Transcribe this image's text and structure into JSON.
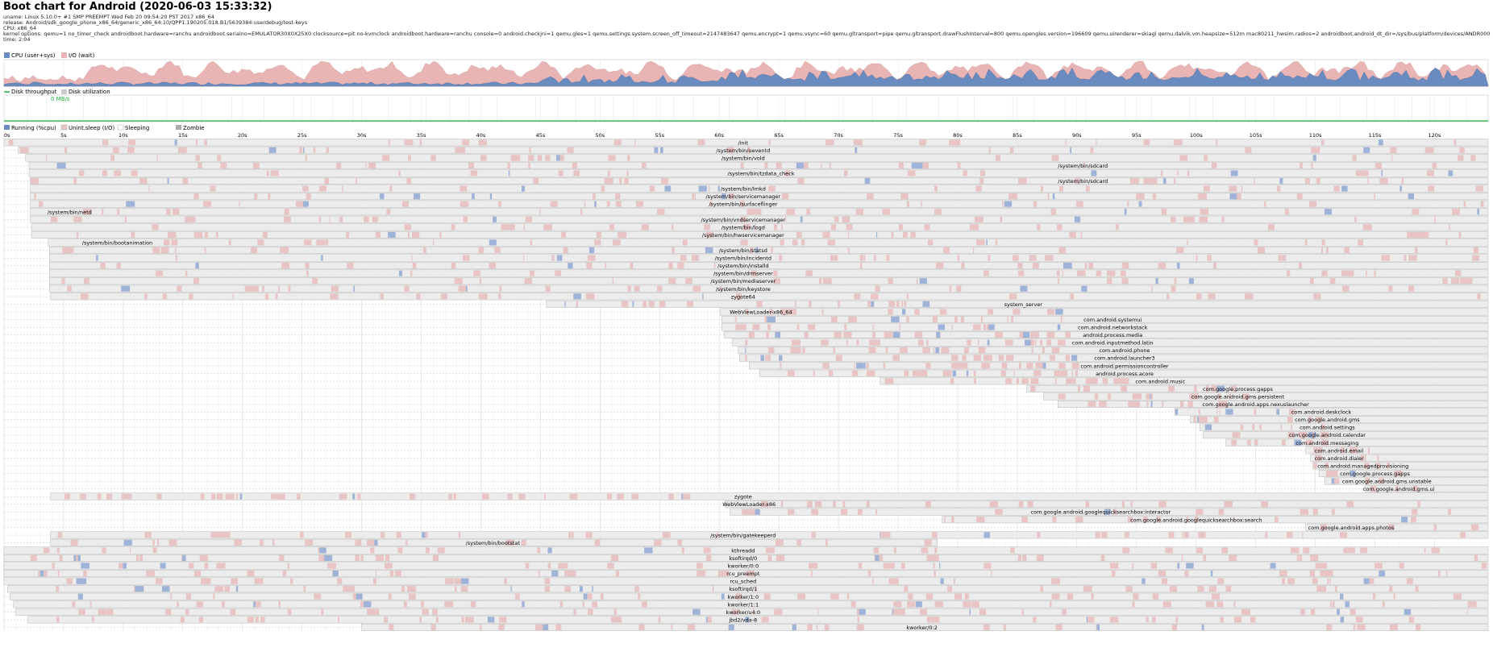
{
  "header": {
    "title": "Boot chart for Android (2020-06-03 15:33:32)",
    "uname": "uname: Linux 5.10.0+ #1 SMP PREEMPT Wed Feb 20 09:54:20 PST 2017 x86_64",
    "release": "release: Android/sdk_google_phone_x86_64/generic_x86_64:10/QPP1.190205.018.B1/5639384:userdebug/test-keys",
    "cpu": "CPU: x86_64",
    "kernel": "kernel options: qemu=1 no_timer_check androidboot.hardware=ranchu androidboot.serialno=EMULATOR30X0X25X0 clocksource=pit no-kvmclock androidboot.hardware=ranchu console=0 android.checkjni=1 qemu.gles=1 qemu.settings.system.screen_off_timeout=2147483647 qemu.encrypt=1 qemu.vsync=60 qemu.gltransport=pipe qemu.gltransport.drawFlushInterval=800 qemu.opengles.version=196609 qemu.uirenderer=skiagl qemu.dalvik.vm.heapsize=512m mac80211_hwsim.radios=2 androidboot.android_dt_dir=/sys/bus/platform/devices/ANDR0001:00/properties/android/ loop.max_part=",
    "time": "time: 2:04"
  },
  "cpu_legend": {
    "user": "CPU (user+sys)",
    "io": "I/O (wait)"
  },
  "disk_legend": {
    "throughput": "Disk throughput",
    "util": "Disk utilization",
    "max": "0 MB/s"
  },
  "proc_legend": {
    "running": "Running (%cpu)",
    "unint": "Unint.sleep (I/O)",
    "sleeping": "Sleeping",
    "zombie": "Zombie"
  },
  "colors": {
    "cpu": "#6a8bbf",
    "io": "#e8b4b4",
    "disk": "#1fb43f",
    "proc_bg": "#ececec",
    "proc_border": "#999999",
    "io_mark": "#e8c4c4",
    "run_mark": "#9fb3d8"
  },
  "axis": {
    "ticks": [
      "0s",
      "5s",
      "10s",
      "15s",
      "20s",
      "25s",
      "30s",
      "35s",
      "40s",
      "45s",
      "50s",
      "55s",
      "60s",
      "65s",
      "70s",
      "75s",
      "80s",
      "85s",
      "90s",
      "95s",
      "100s",
      "105s",
      "110s",
      "115s",
      "120s"
    ],
    "max_seconds": 124.5
  },
  "processes": [
    {
      "name": "/init",
      "start": 0,
      "end": 124.5,
      "label_at": 62
    },
    {
      "name": "/system/bin/ueventd",
      "start": 1.2,
      "end": 124.5,
      "label_at": 62
    },
    {
      "name": "/system/bin/vold",
      "start": 1.8,
      "end": 124.5,
      "label_at": 62
    },
    {
      "name": "/system/bin/sdcard",
      "start": 2.1,
      "end": 124.5,
      "label_at": 90.5
    },
    {
      "name": "/system/bin/tzdata_check",
      "start": 2.1,
      "end": 124.5,
      "label_at": 63.5
    },
    {
      "name": "/system/bin/sdcard",
      "start": 2.2,
      "end": 124.5,
      "label_at": 90.5
    },
    {
      "name": "/system/bin/lmkd",
      "start": 2.2,
      "end": 124.5,
      "label_at": 62
    },
    {
      "name": "/system/bin/servicemanager",
      "start": 2.2,
      "end": 124.5,
      "label_at": 62
    },
    {
      "name": "/system/bin/surfaceflinger",
      "start": 2.2,
      "end": 124.5,
      "label_at": 62
    },
    {
      "name": "/system/bin/netd",
      "start": 2.2,
      "end": 124.5,
      "label_at": 5.5
    },
    {
      "name": "/system/bin/vndservicemanager",
      "start": 2.2,
      "end": 124.5,
      "label_at": 62
    },
    {
      "name": "/system/bin/logd",
      "start": 2.3,
      "end": 124.5,
      "label_at": 62
    },
    {
      "name": "/system/bin/hwservicemanager",
      "start": 2.3,
      "end": 124.5,
      "label_at": 62
    },
    {
      "name": "/system/bin/bootanimation",
      "start": 3.7,
      "end": 124.5,
      "label_at": 9.5
    },
    {
      "name": "/system/bin/statsd",
      "start": 3.8,
      "end": 124.5,
      "label_at": 62
    },
    {
      "name": "/system/bin/incidentd",
      "start": 3.8,
      "end": 124.5,
      "label_at": 62
    },
    {
      "name": "/system/bin/installd",
      "start": 3.8,
      "end": 124.5,
      "label_at": 62
    },
    {
      "name": "/system/bin/drmserver",
      "start": 3.8,
      "end": 124.5,
      "label_at": 62
    },
    {
      "name": "/system/bin/mediaserver",
      "start": 3.8,
      "end": 124.5,
      "label_at": 62
    },
    {
      "name": "/system/bin/keystore",
      "start": 3.8,
      "end": 124.5,
      "label_at": 62
    },
    {
      "name": "zygote64",
      "start": 3.9,
      "end": 124.5,
      "label_at": 62
    },
    {
      "name": "system_server",
      "start": 45.5,
      "end": 124.5,
      "label_at": 85.5
    },
    {
      "name": "WebViewLoader-x86_64",
      "start": 60.1,
      "end": 124.5,
      "label_at": 63.5
    },
    {
      "name": "com.android.systemui",
      "start": 60.2,
      "end": 124.5,
      "label_at": 93
    },
    {
      "name": "com.android.networkstack",
      "start": 60.2,
      "end": 124.5,
      "label_at": 93
    },
    {
      "name": "android.process.media",
      "start": 60.4,
      "end": 124.5,
      "label_at": 93
    },
    {
      "name": "com.android.inputmethod.latin",
      "start": 61.1,
      "end": 124.5,
      "label_at": 93
    },
    {
      "name": "com.android.phone",
      "start": 61.6,
      "end": 124.5,
      "label_at": 94
    },
    {
      "name": "com.android.launcher3",
      "start": 61.7,
      "end": 124.5,
      "label_at": 94
    },
    {
      "name": "com.android.permissioncontroller",
      "start": 62.5,
      "end": 124.5,
      "label_at": 94
    },
    {
      "name": "android.process.acore",
      "start": 63.4,
      "end": 124.5,
      "label_at": 94
    },
    {
      "name": "com.android.music",
      "start": 73.5,
      "end": 124.5,
      "label_at": 97
    },
    {
      "name": "com.google.process.gapps",
      "start": 85.8,
      "end": 124.5,
      "label_at": 103.5
    },
    {
      "name": "com.google.android.gms.persistent",
      "start": 87.2,
      "end": 124.5,
      "label_at": 103.5
    },
    {
      "name": "com.google.android.apps.nexuslauncher",
      "start": 88.4,
      "end": 124.5,
      "label_at": 105
    },
    {
      "name": "com.android.deskclock",
      "start": 98.2,
      "end": 124.5,
      "label_at": 110.5
    },
    {
      "name": "com.google.android.gms",
      "start": 99.5,
      "end": 124.5,
      "label_at": 111
    },
    {
      "name": "com.android.settings",
      "start": 100.3,
      "end": 124.5,
      "label_at": 111
    },
    {
      "name": "com.google.android.calendar",
      "start": 100.6,
      "end": 124.5,
      "label_at": 111
    },
    {
      "name": "com.android.messaging",
      "start": 102.5,
      "end": 124.5,
      "label_at": 111
    },
    {
      "name": "com.android.email",
      "start": 109.2,
      "end": 124.5,
      "label_at": 112
    },
    {
      "name": "com.android.dialer",
      "start": 109.6,
      "end": 124.5,
      "label_at": 112
    },
    {
      "name": "com.android.managedprovisioning",
      "start": 109.8,
      "end": 124.5,
      "label_at": 114
    },
    {
      "name": "com.google.process.gapps",
      "start": 110.3,
      "end": 124.5,
      "label_at": 115
    },
    {
      "name": "com.google.android.gms.unstable",
      "start": 110.8,
      "end": 124.5,
      "label_at": 116
    },
    {
      "name": "com.google.android.gms.ui",
      "start": 114.2,
      "end": 124.5,
      "label_at": 117
    },
    {
      "name": "zygote",
      "start": 3.9,
      "end": 124.5,
      "label_at": 62
    },
    {
      "name": "WebViewLoader-x86",
      "start": 60.5,
      "end": 124.5,
      "label_at": 62.5
    },
    {
      "name": "com.google.android.googlequicksearchbox:interactor",
      "start": 60.9,
      "end": 124.5,
      "label_at": 92
    },
    {
      "name": "com.google.android.googlequicksearchbox:search",
      "start": 78.7,
      "end": 124.5,
      "label_at": 100
    },
    {
      "name": "com.google.android.apps.photos",
      "start": 109.2,
      "end": 124.5,
      "label_at": 113
    },
    {
      "name": "/system/bin/gatekeeperd",
      "start": 3.9,
      "end": 124.5,
      "label_at": 62
    },
    {
      "name": "/system/bin/bootstat",
      "start": 3.9,
      "end": 78.3,
      "label_at": 41
    },
    {
      "name": "kthreadd",
      "start": 0,
      "end": 124.5,
      "label_at": 62
    },
    {
      "name": "ksoftirqd/0",
      "start": 0,
      "end": 124.5,
      "label_at": 62
    },
    {
      "name": "kworker/0:0",
      "start": 0,
      "end": 124.5,
      "label_at": 62
    },
    {
      "name": "rcu_preempt",
      "start": 0,
      "end": 124.5,
      "label_at": 62
    },
    {
      "name": "rcu_sched",
      "start": 0,
      "end": 124.5,
      "label_at": 62
    },
    {
      "name": "ksoftirqd/1",
      "start": 0.3,
      "end": 124.5,
      "label_at": 62
    },
    {
      "name": "kworker/1:0",
      "start": 0.5,
      "end": 124.5,
      "label_at": 62
    },
    {
      "name": "kworker/1:1",
      "start": 0.8,
      "end": 124.5,
      "label_at": 62
    },
    {
      "name": "kworker/u4:0",
      "start": 1.0,
      "end": 124.5,
      "label_at": 62
    },
    {
      "name": "jbd2/vda-8",
      "start": 2.0,
      "end": 124.5,
      "label_at": 62
    },
    {
      "name": "kworker/0:2",
      "start": 30,
      "end": 124.5,
      "label_at": 77
    }
  ]
}
